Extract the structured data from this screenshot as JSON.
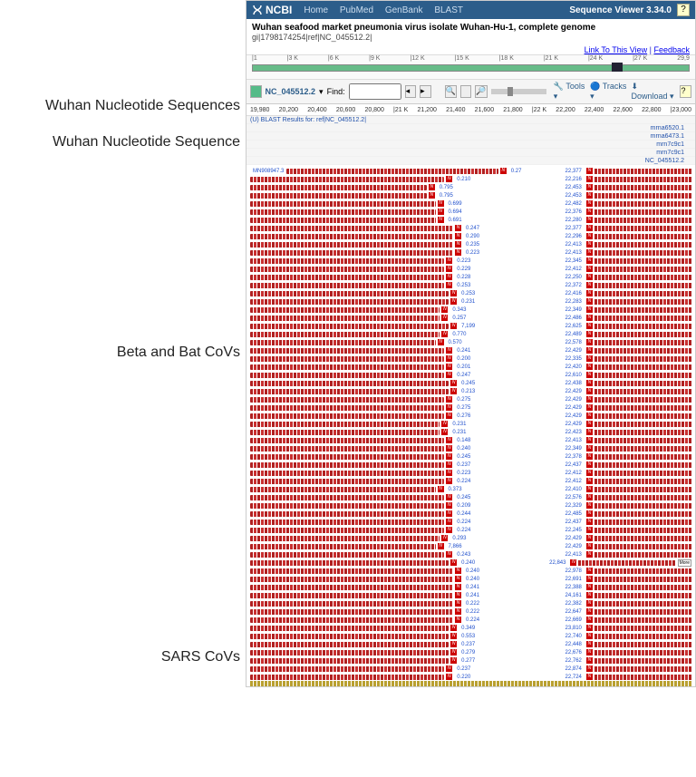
{
  "left_labels": {
    "l1": "Wuhan Nucleotide Sequences",
    "l2": "Wuhan Nucleotide Sequence",
    "l3": "Beta and Bat CoVs",
    "l4": "SARS CoVs"
  },
  "header": {
    "logo": "NCBI",
    "nav": {
      "home": "Home",
      "pubmed": "PubMed",
      "genbank": "GenBank",
      "blast": "BLAST"
    },
    "viewer_title": "Sequence Viewer 3.34.0"
  },
  "title": {
    "main": "Wuhan seafood market pneumonia virus isolate Wuhan-Hu-1, complete genome",
    "sub": "gi|1798174254|ref|NC_045512.2|"
  },
  "links": {
    "link_to_view": "Link To This View",
    "feedback": "Feedback"
  },
  "overview": {
    "ticks": [
      "|1",
      "|3 K",
      "|6 K",
      "|9 K",
      "|12 K",
      "|15 K",
      "|18 K",
      "|21 K",
      "|24 K",
      "|27 K",
      "29,9"
    ]
  },
  "toolbar": {
    "accession": "NC_045512.2",
    "find": "Find:",
    "tools": "Tools",
    "tracks": "Tracks",
    "download": "Download"
  },
  "ruler": {
    "ticks": [
      "19,980",
      "20,200",
      "20,400",
      "20,600",
      "20,800",
      "|21 K",
      "21,200",
      "21,400",
      "21,600",
      "21,800",
      "|22 K",
      "22,200",
      "22,400",
      "22,600",
      "22,800",
      "|23,000"
    ]
  },
  "features": {
    "row1": "(U) BLAST Results for: ref|NC_045512.2|",
    "names": [
      "mrna6520.1",
      "mrna6473.1",
      "mrn7c9c1",
      "mrn7c9c1",
      "NC_045512.2"
    ]
  },
  "first_row": {
    "left_id": "MN908947.3",
    "mid": "0.27",
    "right": "22,377"
  },
  "alignments": [
    {
      "pct": "0.210",
      "pos": "22,216",
      "lw": 44
    },
    {
      "pct": "0.795",
      "pos": "22,453",
      "lw": 40
    },
    {
      "pct": "0.795",
      "pos": "22,453",
      "lw": 40
    },
    {
      "pct": "0.699",
      "pos": "22,482",
      "lw": 42
    },
    {
      "pct": "0.694",
      "pos": "22,376",
      "lw": 42
    },
    {
      "pct": "0.691",
      "pos": "22,280",
      "lw": 42
    },
    {
      "pct": "0.247",
      "pos": "22,377",
      "lw": 46
    },
    {
      "pct": "0.290",
      "pos": "22,296",
      "lw": 46
    },
    {
      "pct": "0.235",
      "pos": "22,413",
      "lw": 46
    },
    {
      "pct": "0.223",
      "pos": "22,413",
      "lw": 46
    },
    {
      "pct": "0.223",
      "pos": "22,345",
      "lw": 44
    },
    {
      "pct": "0.229",
      "pos": "22,412",
      "lw": 44
    },
    {
      "pct": "0.228",
      "pos": "22,250",
      "lw": 44
    },
    {
      "pct": "0.253",
      "pos": "22,372",
      "lw": 44
    },
    {
      "pct": "0.253",
      "pos": "22,416",
      "lw": 45
    },
    {
      "pct": "0.231",
      "pos": "22,283",
      "lw": 45
    },
    {
      "pct": "0.343",
      "pos": "22,349",
      "lw": 43
    },
    {
      "pct": "0.257",
      "pos": "22,486",
      "lw": 43
    },
    {
      "pct": "7,199",
      "pos": "22,625",
      "lw": 45
    },
    {
      "pct": "0.770",
      "pos": "22,489",
      "lw": 43
    },
    {
      "pct": "0.570",
      "pos": "22,578",
      "lw": 42
    },
    {
      "pct": "0.241",
      "pos": "22,429",
      "lw": 44
    },
    {
      "pct": "0.200",
      "pos": "22,335",
      "lw": 44
    },
    {
      "pct": "0.201",
      "pos": "22,420",
      "lw": 44
    },
    {
      "pct": "0.247",
      "pos": "22,610",
      "lw": 44
    },
    {
      "pct": "0.245",
      "pos": "22,438",
      "lw": 45
    },
    {
      "pct": "0.213",
      "pos": "22,429",
      "lw": 45
    },
    {
      "pct": "0.275",
      "pos": "22,429",
      "lw": 44
    },
    {
      "pct": "0.275",
      "pos": "22,429",
      "lw": 44
    },
    {
      "pct": "0.276",
      "pos": "22,429",
      "lw": 44
    },
    {
      "pct": "0.231",
      "pos": "22,429",
      "lw": 43
    },
    {
      "pct": "0.231",
      "pos": "22,423",
      "lw": 43
    },
    {
      "pct": "0.148",
      "pos": "22,413",
      "lw": 44
    },
    {
      "pct": "0.240",
      "pos": "22,349",
      "lw": 44
    },
    {
      "pct": "0.245",
      "pos": "22,378",
      "lw": 44
    },
    {
      "pct": "0.237",
      "pos": "22,437",
      "lw": 44
    },
    {
      "pct": "0.223",
      "pos": "22,412",
      "lw": 44
    },
    {
      "pct": "0.224",
      "pos": "22,412",
      "lw": 44
    },
    {
      "pct": "0.373",
      "pos": "22,410",
      "lw": 42
    },
    {
      "pct": "0.245",
      "pos": "22,576",
      "lw": 44
    },
    {
      "pct": "0.209",
      "pos": "22,329",
      "lw": 44
    },
    {
      "pct": "0.244",
      "pos": "22,485",
      "lw": 44
    },
    {
      "pct": "0.224",
      "pos": "22,437",
      "lw": 44
    },
    {
      "pct": "0.224",
      "pos": "22,245",
      "lw": 44
    },
    {
      "pct": "0.293",
      "pos": "22,429",
      "lw": 43
    },
    {
      "pct": "7,866",
      "pos": "22,429",
      "lw": 42
    },
    {
      "pct": "0.243",
      "pos": "22,413",
      "lw": 44
    },
    {
      "pct": "0.240",
      "pos": "22,843",
      "lw": 45,
      "right_small": "More"
    },
    {
      "pct": "0.240",
      "pos": "22,978",
      "lw": 46
    },
    {
      "pct": "0.240",
      "pos": "22,691",
      "lw": 46
    },
    {
      "pct": "0.241",
      "pos": "22,388",
      "lw": 46
    },
    {
      "pct": "0.241",
      "pos": "24,161",
      "lw": 46
    },
    {
      "pct": "0.222",
      "pos": "22,382",
      "lw": 46
    },
    {
      "pct": "0.222",
      "pos": "22,647",
      "lw": 46
    },
    {
      "pct": "0.224",
      "pos": "22,669",
      "lw": 46
    },
    {
      "pct": "0.349",
      "pos": "23,810",
      "lw": 45
    },
    {
      "pct": "0.553",
      "pos": "22,740",
      "lw": 45
    },
    {
      "pct": "0.237",
      "pos": "22,448",
      "lw": 45
    },
    {
      "pct": "0.279",
      "pos": "22,676",
      "lw": 45
    },
    {
      "pct": "0.277",
      "pos": "22,762",
      "lw": 45
    },
    {
      "pct": "0.237",
      "pos": "22,874",
      "lw": 44
    },
    {
      "pct": "0.220",
      "pos": "22,724",
      "lw": 44
    }
  ]
}
